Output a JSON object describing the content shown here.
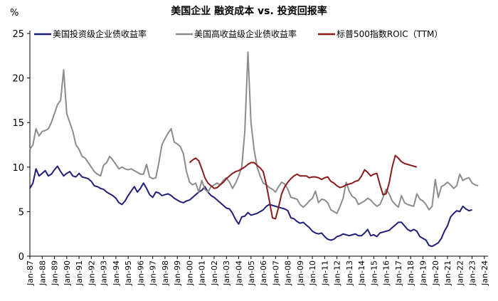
{
  "chart_data": {
    "type": "line",
    "title": "美国企业 融资成本 vs. 投资回报率",
    "ylabel": "%",
    "xlabel": "",
    "ylim": [
      0,
      25
    ],
    "yticks": [
      0,
      5,
      10,
      15,
      20,
      25
    ],
    "grid": false,
    "legend_position": "top-left",
    "x_start": 1987,
    "x_step": 0.25,
    "xticks": [
      "Jan-87",
      "Jan-88",
      "Jan-89",
      "Jan-90",
      "Jan-91",
      "Jan-92",
      "Jan-93",
      "Jan-94",
      "Jan-95",
      "Jan-96",
      "Jan-97",
      "Jan-98",
      "Jan-99",
      "Jan-00",
      "Jan-01",
      "Jan-02",
      "Jan-03",
      "Jan-04",
      "Jan-05",
      "Jan-06",
      "Jan-07",
      "Jan-08",
      "Jan-09",
      "Jan-10",
      "Jan-11",
      "Jan-12",
      "Jan-13",
      "Jan-14",
      "Jan-15",
      "Jan-16",
      "Jan-17",
      "Jan-18",
      "Jan-19",
      "Jan-20",
      "Jan-21",
      "Jan-22",
      "Jan-23",
      "Jan-24"
    ],
    "series": [
      {
        "name": "美国投资级企业债收益率",
        "color": "#1f1f7a",
        "x_start": 1987,
        "values": [
          7.6,
          8.2,
          9.8,
          9.0,
          9.3,
          9.6,
          9.0,
          9.2,
          9.7,
          10.1,
          9.5,
          9.0,
          9.3,
          9.5,
          9.0,
          8.9,
          9.3,
          8.9,
          8.8,
          8.7,
          8.4,
          7.9,
          7.8,
          7.6,
          7.5,
          7.2,
          7.0,
          6.8,
          6.5,
          6.0,
          5.8,
          6.2,
          6.8,
          7.3,
          7.8,
          7.2,
          7.6,
          8.2,
          7.6,
          6.9,
          6.6,
          7.2,
          7.1,
          6.8,
          6.9,
          7.0,
          6.8,
          6.5,
          6.3,
          6.1,
          6.0,
          6.2,
          6.3,
          6.6,
          6.9,
          7.2,
          7.4,
          7.8,
          7.2,
          6.8,
          6.6,
          6.3,
          6.0,
          5.7,
          5.4,
          5.3,
          4.8,
          4.1,
          3.6,
          4.4,
          4.5,
          4.9,
          4.6,
          4.7,
          4.8,
          5.0,
          5.2,
          5.6,
          5.8,
          5.7,
          5.6,
          5.5,
          5.4,
          5.3,
          5.1,
          4.3,
          4.2,
          3.9,
          3.7,
          3.8,
          3.5,
          3.2,
          2.8,
          2.6,
          2.5,
          2.6,
          2.2,
          1.9,
          1.8,
          1.9,
          2.2,
          2.3,
          2.5,
          2.4,
          2.3,
          2.4,
          2.5,
          2.3,
          2.3,
          2.6,
          3.0,
          2.3,
          2.4,
          2.2,
          2.6,
          2.7,
          2.8,
          2.9,
          3.2,
          3.5,
          3.8,
          3.8,
          3.4,
          3.0,
          2.8,
          3.0,
          2.8,
          2.2,
          2.0,
          1.8,
          1.2,
          1.1,
          1.3,
          1.5,
          2.0,
          2.8,
          3.4,
          4.4,
          4.8,
          5.1,
          5.0,
          5.6,
          5.3,
          5.1,
          5.2
        ]
      },
      {
        "name": "美国高收益级企业债收益率",
        "color": "#8c8c8c",
        "x_start": 1987,
        "values": [
          12.0,
          12.5,
          14.3,
          13.5,
          14.0,
          14.1,
          14.3,
          15.0,
          16.0,
          17.0,
          17.5,
          20.9,
          16.0,
          15.0,
          14.0,
          12.5,
          12.0,
          11.2,
          11.0,
          10.5,
          10.0,
          9.5,
          9.2,
          9.0,
          10.2,
          10.5,
          11.2,
          10.8,
          10.3,
          9.8,
          10.0,
          9.8,
          9.7,
          9.8,
          9.6,
          9.4,
          9.2,
          9.2,
          10.3,
          8.9,
          8.7,
          8.8,
          10.5,
          12.5,
          13.2,
          13.8,
          14.3,
          12.8,
          12.6,
          12.3,
          11.5,
          9.5,
          8.3,
          8.0,
          8.2,
          7.2,
          8.5,
          7.5,
          7.2,
          7.8,
          8.0,
          8.2,
          8.0,
          8.5,
          8.8,
          8.3,
          7.6,
          8.2,
          9.0,
          10.0,
          14.0,
          22.9,
          15.0,
          12.0,
          10.0,
          9.0,
          8.2,
          8.0,
          7.7,
          7.5,
          7.2,
          7.8,
          8.3,
          8.1,
          7.5,
          6.6,
          6.5,
          6.4,
          5.8,
          5.5,
          5.8,
          6.2,
          6.5,
          7.3,
          6.0,
          6.4,
          6.3,
          6.0,
          5.2,
          5.0,
          4.8,
          5.6,
          6.5,
          8.3,
          7.3,
          6.7,
          6.5,
          5.8,
          6.0,
          6.2,
          6.5,
          6.3,
          5.9,
          5.6,
          5.8,
          6.6,
          7.5,
          7.0,
          6.2,
          5.8,
          5.5,
          6.8,
          6.0,
          5.8,
          5.7,
          5.6,
          7.0,
          6.4,
          6.2,
          5.8,
          5.2,
          5.6,
          8.6,
          6.6,
          7.8,
          8.0,
          8.3,
          8.0,
          7.6,
          7.9,
          9.2,
          8.5,
          8.7,
          8.8,
          8.2,
          8.0,
          7.9
        ]
      },
      {
        "name": "标普500指数ROIC（TTM）",
        "color": "#8b1a1a",
        "x_start": 2000,
        "values": [
          10.5,
          10.8,
          11.0,
          10.7,
          9.8,
          8.8,
          8.2,
          7.9,
          7.6,
          7.7,
          8.0,
          8.3,
          8.7,
          9.0,
          9.3,
          9.5,
          9.6,
          9.8,
          10.0,
          10.3,
          10.5,
          10.5,
          10.2,
          9.9,
          9.5,
          8.0,
          6.2,
          4.3,
          4.2,
          5.5,
          7.0,
          7.8,
          8.3,
          8.7,
          9.0,
          9.2,
          9.0,
          9.0,
          9.0,
          8.8,
          8.9,
          8.9,
          8.8,
          8.6,
          8.8,
          8.9,
          8.4,
          8.2,
          7.9,
          7.7,
          7.8,
          8.0,
          8.1,
          8.2,
          8.4,
          8.5,
          9.0,
          9.7,
          9.4,
          9.0,
          9.2,
          9.3,
          8.0,
          6.9,
          7.0,
          8.2,
          10.0,
          11.3,
          11.0,
          10.6,
          10.4,
          10.3,
          10.2,
          10.1,
          10.0
        ]
      }
    ]
  }
}
